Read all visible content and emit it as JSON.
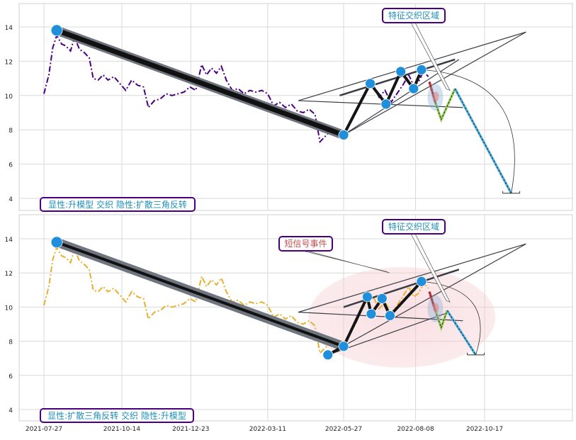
{
  "chart_data": [
    {
      "type": "line",
      "panel": "top",
      "x_dates": [
        "2021-07-27",
        "2021-10-14",
        "2021-12-23",
        "2022-03-11",
        "2022-05-27",
        "2022-08-08",
        "2022-10-17"
      ],
      "y_ticks": [
        4,
        6,
        8,
        10,
        12,
        14
      ],
      "ylim": [
        3.6,
        15.3
      ],
      "grid": true,
      "series": [
        {
          "color": "#4b0082",
          "style": "dash-dot"
        }
      ],
      "price_points": [
        [
          "2021-07-27",
          10.1
        ],
        [
          "2021-08-01",
          11.2
        ],
        [
          "2021-08-05",
          12.8
        ],
        [
          "2021-08-09",
          13.5
        ],
        [
          "2021-08-14",
          13.0
        ],
        [
          "2021-08-18",
          12.9
        ],
        [
          "2021-08-23",
          12.6
        ],
        [
          "2021-08-27",
          13.4
        ],
        [
          "2021-09-01",
          12.7
        ],
        [
          "2021-09-06",
          12.5
        ],
        [
          "2021-09-11",
          12.2
        ],
        [
          "2021-09-15",
          11.0
        ],
        [
          "2021-09-20",
          10.9
        ],
        [
          "2021-09-25",
          11.2
        ],
        [
          "2021-09-30",
          10.9
        ],
        [
          "2021-10-06",
          11.1
        ],
        [
          "2021-10-12",
          10.7
        ],
        [
          "2021-10-18",
          10.3
        ],
        [
          "2021-10-24",
          10.9
        ],
        [
          "2021-10-30",
          10.6
        ],
        [
          "2021-11-05",
          10.5
        ],
        [
          "2021-11-10",
          9.3
        ],
        [
          "2021-11-16",
          9.7
        ],
        [
          "2021-11-22",
          9.8
        ],
        [
          "2021-11-28",
          10.1
        ],
        [
          "2021-12-04",
          10.0
        ],
        [
          "2021-12-10",
          10.1
        ],
        [
          "2021-12-16",
          10.2
        ],
        [
          "2021-12-22",
          10.5
        ],
        [
          "2021-12-28",
          10.3
        ],
        [
          "2022-01-03",
          11.8
        ],
        [
          "2022-01-08",
          11.2
        ],
        [
          "2022-01-13",
          11.6
        ],
        [
          "2022-01-18",
          11.3
        ],
        [
          "2022-01-23",
          11.7
        ],
        [
          "2022-01-28",
          10.9
        ],
        [
          "2022-02-03",
          10.3
        ],
        [
          "2022-02-09",
          10.4
        ],
        [
          "2022-02-15",
          10.1
        ],
        [
          "2022-02-21",
          10.3
        ],
        [
          "2022-02-27",
          10.2
        ],
        [
          "2022-03-05",
          10.3
        ],
        [
          "2022-03-11",
          10.1
        ],
        [
          "2022-03-17",
          9.4
        ],
        [
          "2022-03-23",
          9.6
        ],
        [
          "2022-03-29",
          9.3
        ],
        [
          "2022-04-04",
          9.5
        ],
        [
          "2022-04-10",
          9.1
        ],
        [
          "2022-04-16",
          9.0
        ],
        [
          "2022-04-22",
          9.2
        ],
        [
          "2022-04-28",
          8.9
        ],
        [
          "2022-05-03",
          7.3
        ],
        [
          "2022-05-08",
          7.6
        ],
        [
          "2022-05-13",
          7.9
        ],
        [
          "2022-05-18",
          7.6
        ],
        [
          "2022-05-23",
          7.9
        ],
        [
          "2022-05-27",
          7.8
        ],
        [
          "2022-06-02",
          8.4
        ],
        [
          "2022-06-08",
          9.0
        ],
        [
          "2022-06-14",
          9.8
        ],
        [
          "2022-06-20",
          10.4
        ],
        [
          "2022-06-26",
          10.6
        ],
        [
          "2022-07-02",
          9.9
        ],
        [
          "2022-07-08",
          10.3
        ],
        [
          "2022-07-14",
          9.6
        ],
        [
          "2022-07-20",
          10.1
        ],
        [
          "2022-07-26",
          10.6
        ],
        [
          "2022-08-01",
          11.2
        ],
        [
          "2022-08-06",
          10.6
        ],
        [
          "2022-08-11",
          10.8
        ],
        [
          "2022-08-16",
          11.4
        ],
        [
          "2022-08-21",
          11.1
        ]
      ],
      "markers": [
        [
          "2021-08-09",
          13.8
        ],
        [
          "2022-05-27",
          7.7
        ],
        [
          "2022-06-23",
          10.7
        ],
        [
          "2022-07-09",
          9.5
        ],
        [
          "2022-07-24",
          11.4
        ],
        [
          "2022-08-06",
          10.4
        ],
        [
          "2022-08-14",
          11.5
        ]
      ],
      "projection": [
        [
          "2022-08-22",
          10.8
        ],
        [
          "2022-08-28",
          9.6
        ],
        [
          "2022-09-03",
          8.6
        ],
        [
          "2022-09-17",
          10.4
        ],
        [
          "2022-11-13",
          4.3
        ]
      ],
      "callout": "特征交织区域",
      "caption": "显性:升模型 交织 隐性:扩散三角反转"
    },
    {
      "type": "line",
      "panel": "bottom",
      "x_dates": [
        "2021-07-27",
        "2021-10-14",
        "2021-12-23",
        "2022-03-11",
        "2022-05-27",
        "2022-08-08",
        "2022-10-17"
      ],
      "y_ticks": [
        4,
        6,
        8,
        10,
        12,
        14
      ],
      "ylim": [
        3.6,
        15.3
      ],
      "grid": true,
      "series": [
        {
          "color": "#e8b030",
          "style": "dash-dot"
        }
      ],
      "price_points": [
        [
          "2021-07-27",
          10.1
        ],
        [
          "2021-08-01",
          11.2
        ],
        [
          "2021-08-05",
          12.8
        ],
        [
          "2021-08-09",
          13.5
        ],
        [
          "2021-08-14",
          13.0
        ],
        [
          "2021-08-18",
          12.9
        ],
        [
          "2021-08-23",
          12.6
        ],
        [
          "2021-08-27",
          13.4
        ],
        [
          "2021-09-01",
          12.7
        ],
        [
          "2021-09-06",
          12.5
        ],
        [
          "2021-09-11",
          12.2
        ],
        [
          "2021-09-15",
          11.0
        ],
        [
          "2021-09-20",
          10.9
        ],
        [
          "2021-09-25",
          11.2
        ],
        [
          "2021-09-30",
          10.9
        ],
        [
          "2021-10-06",
          11.1
        ],
        [
          "2021-10-12",
          10.7
        ],
        [
          "2021-10-18",
          10.3
        ],
        [
          "2021-10-24",
          10.9
        ],
        [
          "2021-10-30",
          10.6
        ],
        [
          "2021-11-05",
          10.5
        ],
        [
          "2021-11-10",
          9.3
        ],
        [
          "2021-11-16",
          9.7
        ],
        [
          "2021-11-22",
          9.8
        ],
        [
          "2021-11-28",
          10.1
        ],
        [
          "2021-12-04",
          10.0
        ],
        [
          "2021-12-10",
          10.1
        ],
        [
          "2021-12-16",
          10.2
        ],
        [
          "2021-12-22",
          10.5
        ],
        [
          "2021-12-28",
          10.3
        ],
        [
          "2022-01-03",
          11.8
        ],
        [
          "2022-01-08",
          11.2
        ],
        [
          "2022-01-13",
          11.6
        ],
        [
          "2022-01-18",
          11.3
        ],
        [
          "2022-01-23",
          11.7
        ],
        [
          "2022-01-28",
          10.9
        ],
        [
          "2022-02-03",
          10.3
        ],
        [
          "2022-02-09",
          10.4
        ],
        [
          "2022-02-15",
          10.1
        ],
        [
          "2022-02-21",
          10.3
        ],
        [
          "2022-02-27",
          10.2
        ],
        [
          "2022-03-05",
          10.3
        ],
        [
          "2022-03-11",
          10.1
        ],
        [
          "2022-03-17",
          9.4
        ],
        [
          "2022-03-23",
          9.6
        ],
        [
          "2022-03-29",
          9.3
        ],
        [
          "2022-04-04",
          9.5
        ],
        [
          "2022-04-10",
          9.1
        ],
        [
          "2022-04-16",
          9.0
        ],
        [
          "2022-04-22",
          9.2
        ],
        [
          "2022-04-28",
          8.9
        ],
        [
          "2022-05-03",
          7.3
        ],
        [
          "2022-05-08",
          7.6
        ],
        [
          "2022-05-13",
          7.9
        ],
        [
          "2022-05-18",
          7.6
        ],
        [
          "2022-05-23",
          7.9
        ],
        [
          "2022-05-27",
          7.8
        ],
        [
          "2022-06-02",
          8.4
        ],
        [
          "2022-06-08",
          9.0
        ],
        [
          "2022-06-14",
          9.8
        ],
        [
          "2022-06-20",
          10.4
        ],
        [
          "2022-06-26",
          10.6
        ],
        [
          "2022-07-02",
          9.9
        ],
        [
          "2022-07-08",
          10.3
        ],
        [
          "2022-07-14",
          9.6
        ],
        [
          "2022-07-20",
          10.1
        ],
        [
          "2022-07-26",
          10.6
        ],
        [
          "2022-08-01",
          11.2
        ],
        [
          "2022-08-06",
          10.6
        ],
        [
          "2022-08-11",
          10.8
        ],
        [
          "2022-08-16",
          11.4
        ],
        [
          "2022-08-21",
          11.1
        ]
      ],
      "markers": [
        [
          "2021-08-09",
          13.8
        ],
        [
          "2022-05-11",
          7.2
        ],
        [
          "2022-05-27",
          7.7
        ],
        [
          "2022-06-20",
          10.6
        ],
        [
          "2022-06-24",
          9.6
        ],
        [
          "2022-07-05",
          10.5
        ],
        [
          "2022-07-13",
          9.5
        ],
        [
          "2022-08-14",
          11.5
        ]
      ],
      "projection": [
        [
          "2022-08-22",
          10.9
        ],
        [
          "2022-08-28",
          9.8
        ],
        [
          "2022-09-03",
          8.8
        ],
        [
          "2022-09-09",
          9.8
        ],
        [
          "2022-10-08",
          7.2
        ]
      ],
      "callouts": [
        "特征交织区域",
        "短信号事件"
      ],
      "caption": "显性:扩散三角反转 交织 隐性:升模型"
    }
  ]
}
